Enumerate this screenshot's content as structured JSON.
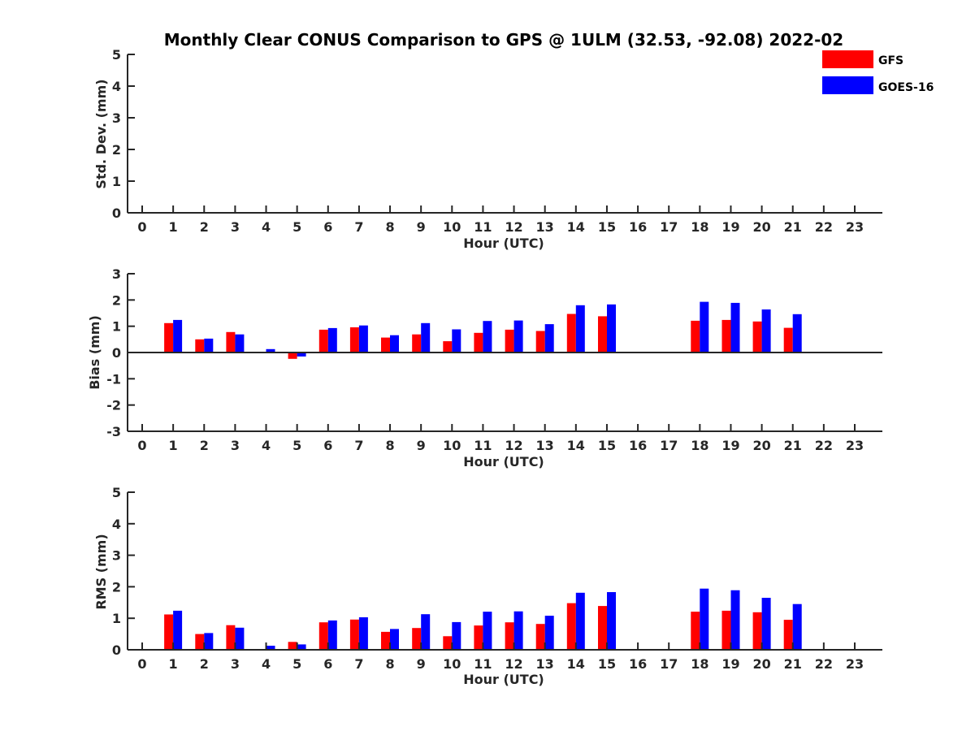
{
  "title": "Monthly Clear CONUS Comparison to GPS @ 1ULM (32.53, -92.08) 2022-02",
  "colors": {
    "gfs": "#ff0000",
    "goes": "#0000ff",
    "axis": "#262626"
  },
  "legend": [
    {
      "name": "GFS",
      "color": "#ff0000"
    },
    {
      "name": "GOES-16",
      "color": "#0000ff"
    }
  ],
  "chart_data": [
    {
      "type": "bar",
      "title": "Monthly Clear CONUS Comparison to GPS @ 1ULM (32.53, -92.08) 2022-02",
      "xlabel": "Hour (UTC)",
      "ylabel": "Std. Dev. (mm)",
      "categories": [
        "0",
        "1",
        "2",
        "3",
        "4",
        "5",
        "6",
        "7",
        "8",
        "9",
        "10",
        "11",
        "12",
        "13",
        "14",
        "15",
        "16",
        "17",
        "18",
        "19",
        "20",
        "21",
        "22",
        "23"
      ],
      "ylim": [
        0,
        5
      ],
      "yticks": [
        "0",
        "1",
        "2",
        "3",
        "4",
        "5"
      ],
      "series": [
        {
          "name": "GFS",
          "values": [
            null,
            null,
            null,
            null,
            null,
            null,
            null,
            null,
            null,
            null,
            null,
            null,
            null,
            null,
            null,
            null,
            null,
            null,
            null,
            null,
            null,
            null,
            null,
            null
          ]
        },
        {
          "name": "GOES-16",
          "values": [
            null,
            null,
            null,
            null,
            null,
            null,
            null,
            null,
            null,
            null,
            null,
            null,
            null,
            null,
            null,
            null,
            null,
            null,
            null,
            null,
            null,
            null,
            null,
            null
          ]
        }
      ]
    },
    {
      "type": "bar",
      "xlabel": "Hour (UTC)",
      "ylabel": "Bias (mm)",
      "categories": [
        "0",
        "1",
        "2",
        "3",
        "4",
        "5",
        "6",
        "7",
        "8",
        "9",
        "10",
        "11",
        "12",
        "13",
        "14",
        "15",
        "16",
        "17",
        "18",
        "19",
        "20",
        "21",
        "22",
        "23"
      ],
      "ylim": [
        -3,
        3
      ],
      "yticks": [
        "-3",
        "-2",
        "-1",
        "0",
        "1",
        "2",
        "3"
      ],
      "series": [
        {
          "name": "GFS",
          "values": [
            null,
            1.12,
            0.5,
            0.78,
            null,
            -0.24,
            0.87,
            0.96,
            0.57,
            0.69,
            0.43,
            0.75,
            0.87,
            0.82,
            1.47,
            1.38,
            null,
            null,
            1.21,
            1.24,
            1.18,
            0.94,
            null,
            null
          ]
        },
        {
          "name": "GOES-16",
          "values": [
            null,
            1.24,
            0.53,
            0.69,
            0.13,
            -0.15,
            0.93,
            1.03,
            0.66,
            1.12,
            0.88,
            1.2,
            1.22,
            1.08,
            1.8,
            1.83,
            null,
            null,
            1.93,
            1.89,
            1.64,
            1.46,
            null,
            null
          ]
        }
      ]
    },
    {
      "type": "bar",
      "xlabel": "Hour (UTC)",
      "ylabel": "RMS (mm)",
      "categories": [
        "0",
        "1",
        "2",
        "3",
        "4",
        "5",
        "6",
        "7",
        "8",
        "9",
        "10",
        "11",
        "12",
        "13",
        "14",
        "15",
        "16",
        "17",
        "18",
        "19",
        "20",
        "21",
        "22",
        "23"
      ],
      "ylim": [
        0,
        5
      ],
      "yticks": [
        "0",
        "1",
        "2",
        "3",
        "4",
        "5"
      ],
      "series": [
        {
          "name": "GFS",
          "values": [
            null,
            1.12,
            0.5,
            0.78,
            null,
            0.25,
            0.87,
            0.96,
            0.57,
            0.69,
            0.43,
            0.77,
            0.87,
            0.82,
            1.48,
            1.39,
            null,
            null,
            1.21,
            1.24,
            1.19,
            0.95,
            null,
            null
          ]
        },
        {
          "name": "GOES-16",
          "values": [
            null,
            1.24,
            0.53,
            0.7,
            0.13,
            0.17,
            0.93,
            1.03,
            0.66,
            1.13,
            0.88,
            1.21,
            1.22,
            1.08,
            1.81,
            1.83,
            null,
            null,
            1.94,
            1.89,
            1.65,
            1.45,
            null,
            null
          ]
        }
      ]
    }
  ]
}
